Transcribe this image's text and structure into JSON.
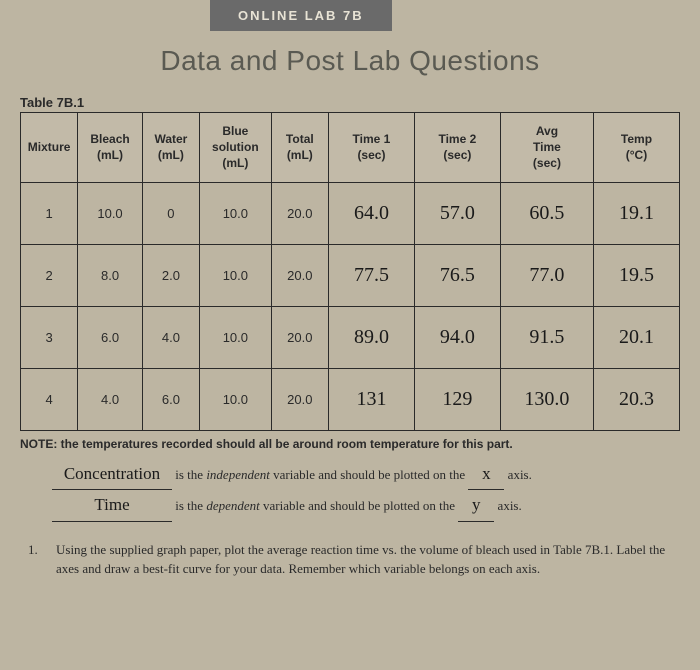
{
  "header": {
    "tab": "ONLINE LAB 7B",
    "title": "Data and Post Lab Questions",
    "table_label": "Table 7B.1"
  },
  "table": {
    "columns": [
      "Mixture",
      "Bleach\n(mL)",
      "Water\n(mL)",
      "Blue\nsolution\n(mL)",
      "Total\n(mL)",
      "Time 1\n(sec)",
      "Time 2\n(sec)",
      "Avg\nTime\n(sec)",
      "Temp\n(°C)"
    ],
    "rows": [
      {
        "mixture": "1",
        "bleach": "10.0",
        "water": "0",
        "blue": "10.0",
        "total": "20.0",
        "t1": "64.0",
        "t2": "57.0",
        "avg": "60.5",
        "temp": "19.1"
      },
      {
        "mixture": "2",
        "bleach": "8.0",
        "water": "2.0",
        "blue": "10.0",
        "total": "20.0",
        "t1": "77.5",
        "t2": "76.5",
        "avg": "77.0",
        "temp": "19.5"
      },
      {
        "mixture": "3",
        "bleach": "6.0",
        "water": "4.0",
        "blue": "10.0",
        "total": "20.0",
        "t1": "89.0",
        "t2": "94.0",
        "avg": "91.5",
        "temp": "20.1"
      },
      {
        "mixture": "4",
        "bleach": "4.0",
        "water": "6.0",
        "blue": "10.0",
        "total": "20.0",
        "t1": "131",
        "t2": "129",
        "avg": "130.0",
        "temp": "20.3"
      }
    ]
  },
  "note": "NOTE: the temperatures recorded should all be around room temperature for this part.",
  "fill": {
    "independent_answer": "Concentration",
    "independent_text_a": " is the ",
    "independent_em": "independent",
    "independent_text_b": " variable and should be plotted on the ",
    "independent_axis": "x",
    "axis_suffix": " axis.",
    "dependent_answer": "Time",
    "dependent_text_a": " is the ",
    "dependent_em": "dependent",
    "dependent_text_b": " variable and should be plotted on the ",
    "dependent_axis": "y"
  },
  "question": {
    "num": "1.",
    "text": "Using the supplied graph paper, plot the average reaction time vs. the volume of bleach used in Table 7B.1. Label the axes and draw a best-fit curve for your data. Remember which variable belongs on each axis."
  }
}
